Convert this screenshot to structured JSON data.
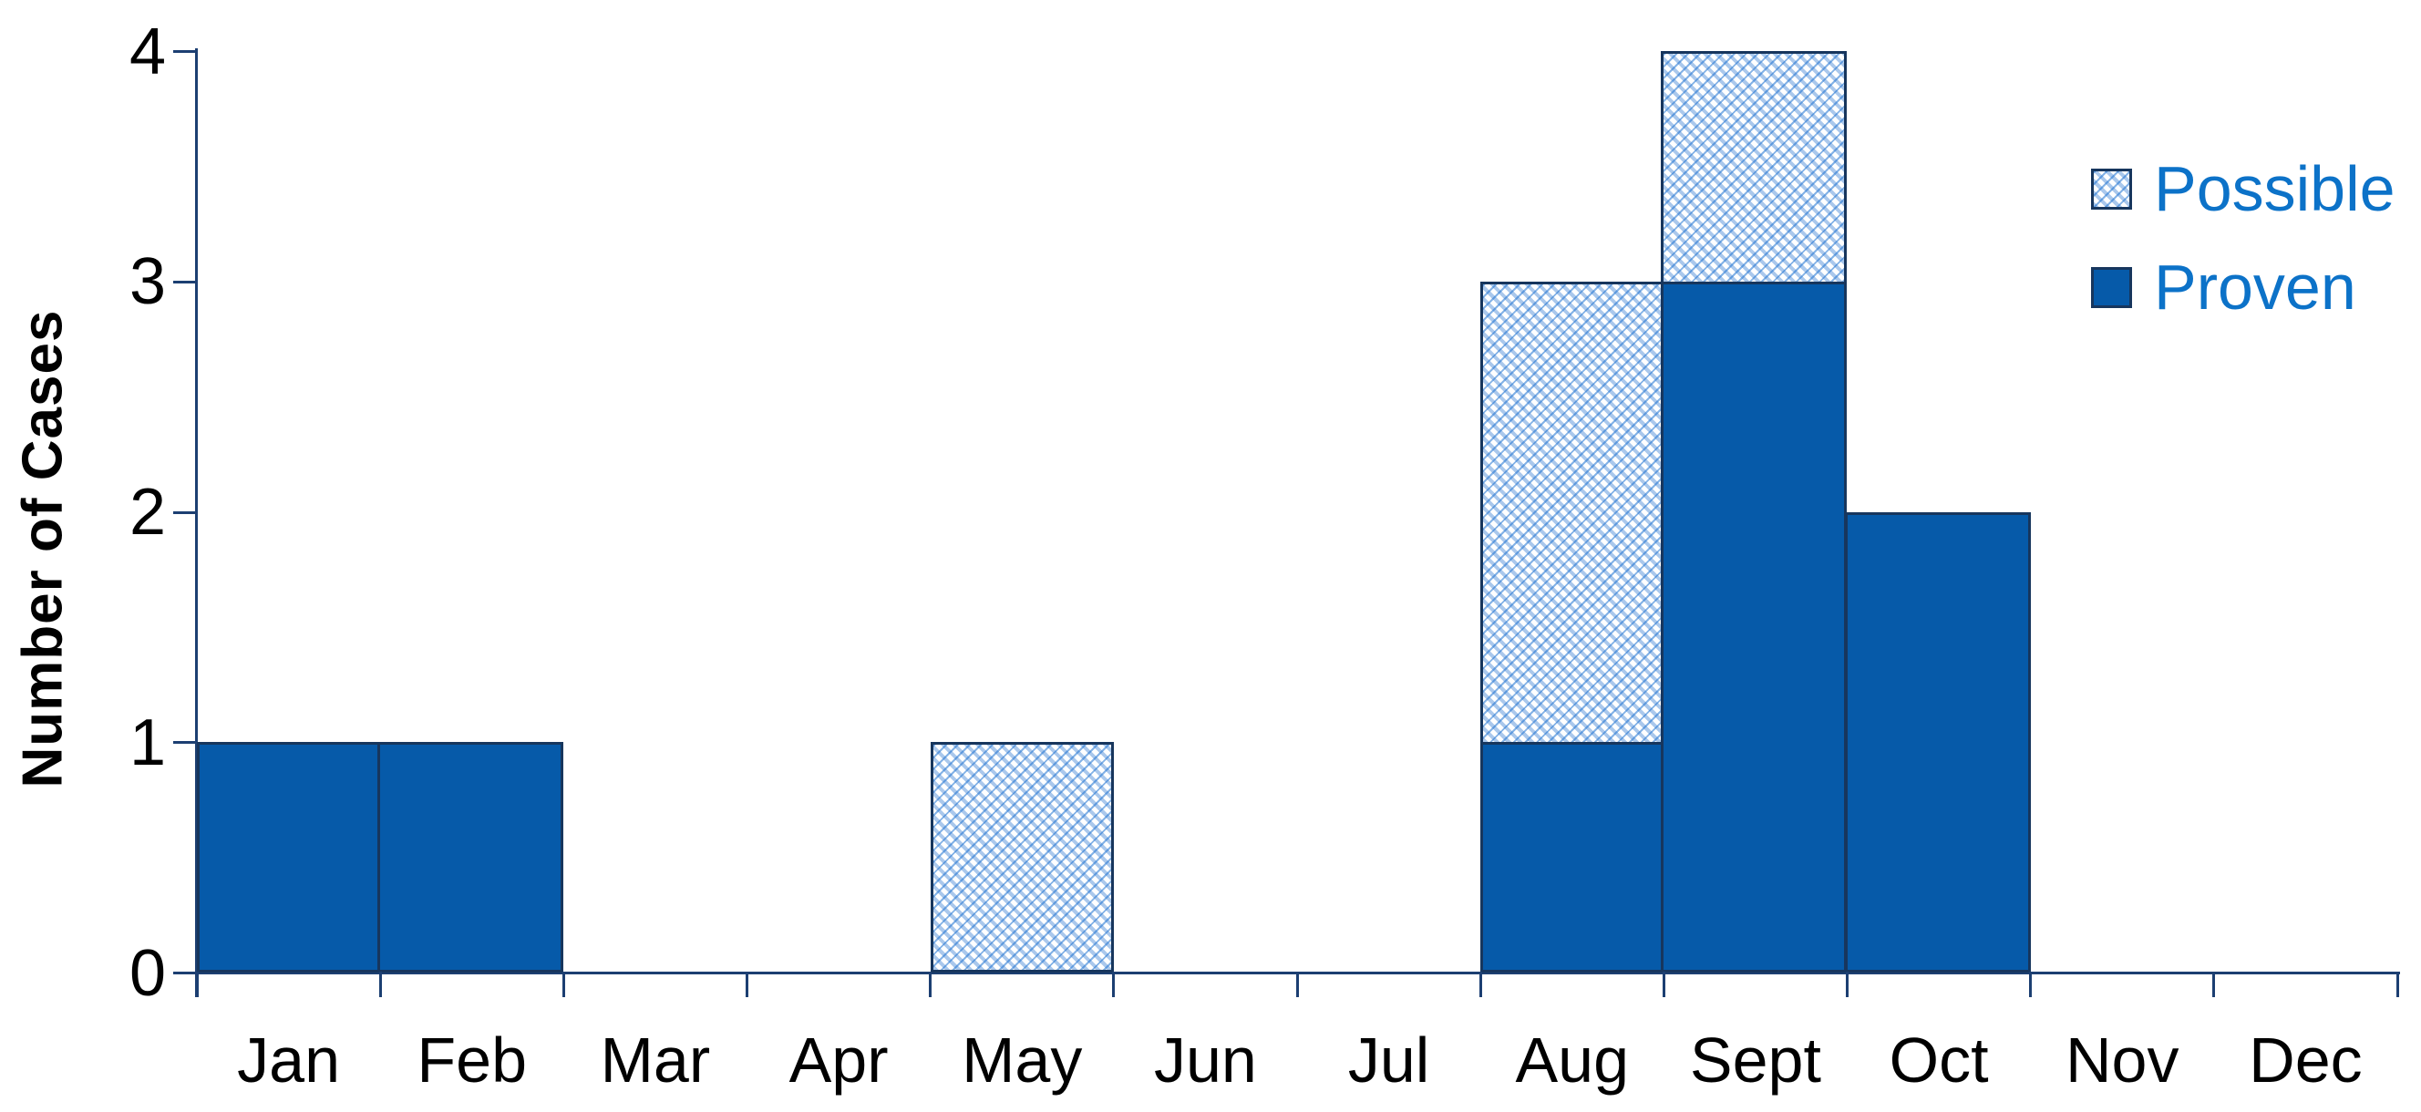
{
  "figure": {
    "background": "#ffffff"
  },
  "y_axis": {
    "title": "Number of Cases",
    "tick_labels": [
      "0",
      "1",
      "2",
      "3",
      "4"
    ]
  },
  "x_axis": {
    "tick_labels": [
      "Jan",
      "Feb",
      "Mar",
      "Apr",
      "May",
      "Jun",
      "Jul",
      "Aug",
      "Sept",
      "Oct",
      "Nov",
      "Dec"
    ]
  },
  "legend": {
    "items": [
      {
        "label": "Possible",
        "style": "hatched"
      },
      {
        "label": "Proven",
        "style": "solid"
      }
    ]
  },
  "colors": {
    "bar_fill": "#065AA9",
    "bar_border": "#17365D",
    "axis": "#1C3F72",
    "hatch_light": "#AAC8EC",
    "hatch_accent": "rgba(30,115,210,0.55)",
    "legend_text": "#0C72C8",
    "label_text": "#000000"
  },
  "chart_data": {
    "type": "bar",
    "stacked": true,
    "title": "",
    "xlabel": "",
    "ylabel": "Number of Cases",
    "categories": [
      "Jan",
      "Feb",
      "Mar",
      "Apr",
      "May",
      "Jun",
      "Jul",
      "Aug",
      "Sept",
      "Oct",
      "Nov",
      "Dec"
    ],
    "series": [
      {
        "name": "Proven",
        "style": "solid",
        "values": [
          1,
          1,
          0,
          0,
          0,
          0,
          0,
          1,
          3,
          2,
          0,
          0
        ]
      },
      {
        "name": "Possible",
        "style": "hatched",
        "values": [
          0,
          0,
          0,
          0,
          1,
          0,
          0,
          2,
          1,
          0,
          0,
          0
        ]
      }
    ],
    "ylim": [
      0,
      4
    ],
    "yticks": [
      0,
      1,
      2,
      3,
      4
    ],
    "grid": false,
    "legend_position": "upper right"
  }
}
